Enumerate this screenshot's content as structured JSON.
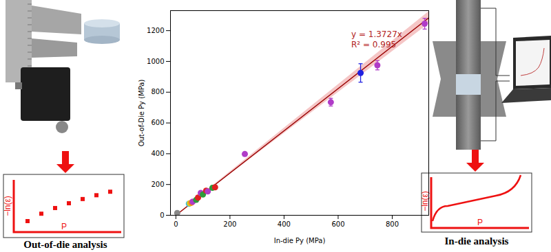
{
  "chart_data": {
    "type": "scatter",
    "xlabel": "In-die Py (MPa)",
    "ylabel": "Out-of-Die Py (MPa)",
    "x": [
      5,
      48,
      52,
      58,
      62,
      75,
      82,
      92,
      100,
      112,
      118,
      135,
      145,
      255,
      573,
      683,
      745,
      920
    ],
    "values": [
      15,
      75,
      78,
      82,
      88,
      100,
      115,
      145,
      135,
      160,
      155,
      178,
      182,
      398,
      735,
      925,
      975,
      1245
    ],
    "error": [
      null,
      null,
      null,
      null,
      null,
      null,
      null,
      null,
      null,
      null,
      null,
      null,
      null,
      12,
      25,
      60,
      30,
      35
    ],
    "colors": [
      "#888888",
      "#40c0e0",
      "#e6c619",
      "#f08020",
      "#b03cc8",
      "#2e9b3a",
      "#e02020",
      "#b03cc8",
      "#2e9b3a",
      "#e02020",
      "#b03cc8",
      "#2e9b3a",
      "#e02020",
      "#b03cc8",
      "#b03cc8",
      "#2020e0",
      "#b03cc8",
      "#b03cc8"
    ],
    "marker": "circle",
    "fit": {
      "slope": 1.3727,
      "slope_lo": 1.33,
      "slope_hi": 1.415,
      "color": "#990000",
      "band_color": "#e88080"
    },
    "annotations": [
      {
        "text": "y = 1.3727x",
        "color": "#b22222"
      },
      {
        "text": "R² = 0.995",
        "color": "#b22222"
      }
    ],
    "xlim": [
      -20,
      935
    ],
    "ylim": [
      0,
      1330
    ],
    "xticks": [
      0,
      200,
      400,
      600,
      800
    ],
    "yticks": [
      0,
      200,
      400,
      600,
      800,
      1000,
      1200
    ],
    "grid": false
  },
  "panels": [
    {
      "caption": "Out-of-die analysis",
      "ylabel": "−ln(ε)",
      "xlabel": "P"
    },
    {
      "caption": "In-die analysis",
      "ylabel": "−ln(ε)",
      "xlabel": "P"
    }
  ]
}
